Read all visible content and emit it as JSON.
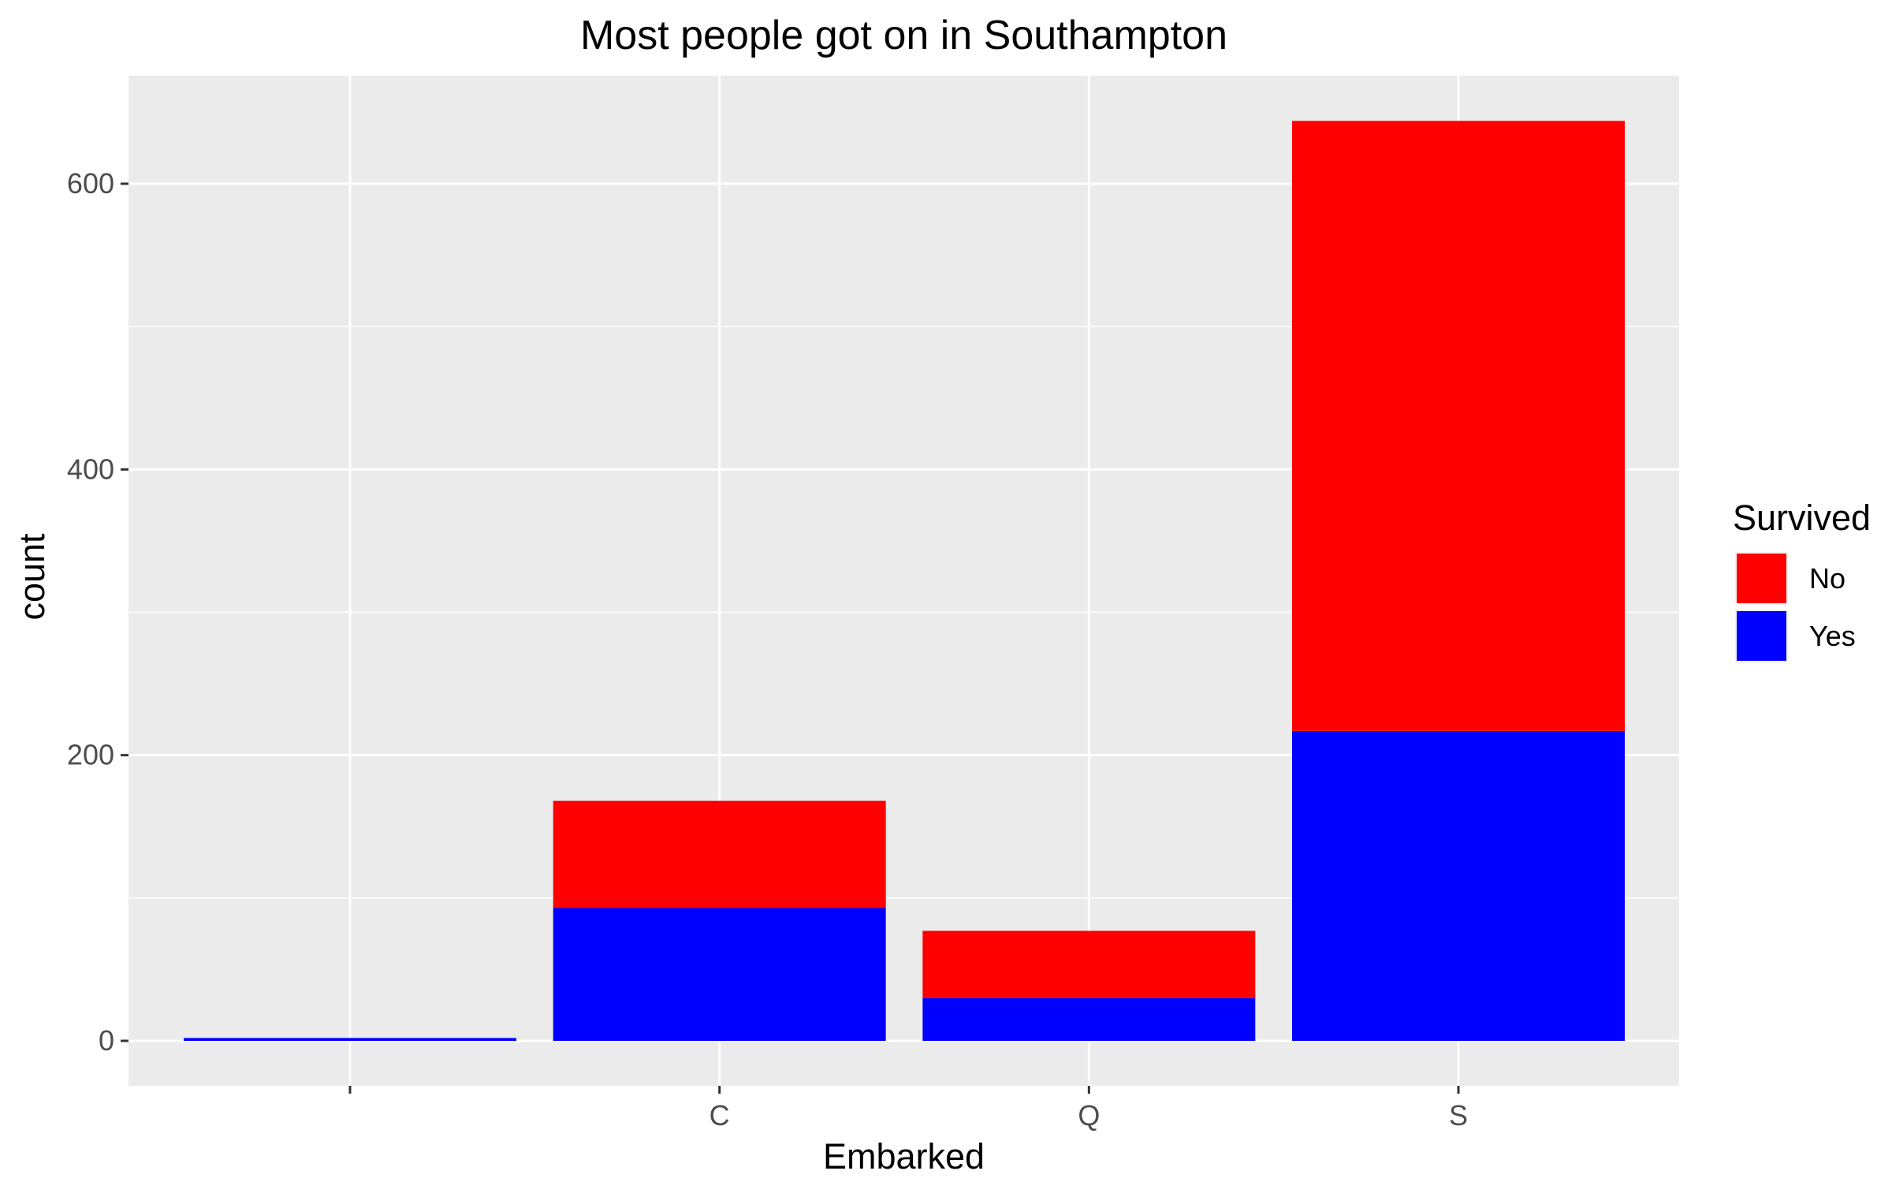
{
  "chart_data": {
    "type": "bar",
    "stacked": true,
    "title": "Most people got on in Southampton",
    "xlabel": "Embarked",
    "ylabel": "count",
    "categories": [
      "",
      "C",
      "Q",
      "S"
    ],
    "series": [
      {
        "name": "No",
        "color": "#ff0000",
        "values": [
          0,
          75,
          47,
          427
        ]
      },
      {
        "name": "Yes",
        "color": "#0000ff",
        "values": [
          2,
          93,
          30,
          217
        ]
      }
    ],
    "ylim": [
      0,
      675
    ],
    "yticks": [
      0,
      200,
      400,
      600
    ],
    "grid": true,
    "legend": {
      "title": "Survived",
      "position": "right",
      "items": [
        "No",
        "Yes"
      ]
    },
    "panel_background": "#ebebeb"
  }
}
